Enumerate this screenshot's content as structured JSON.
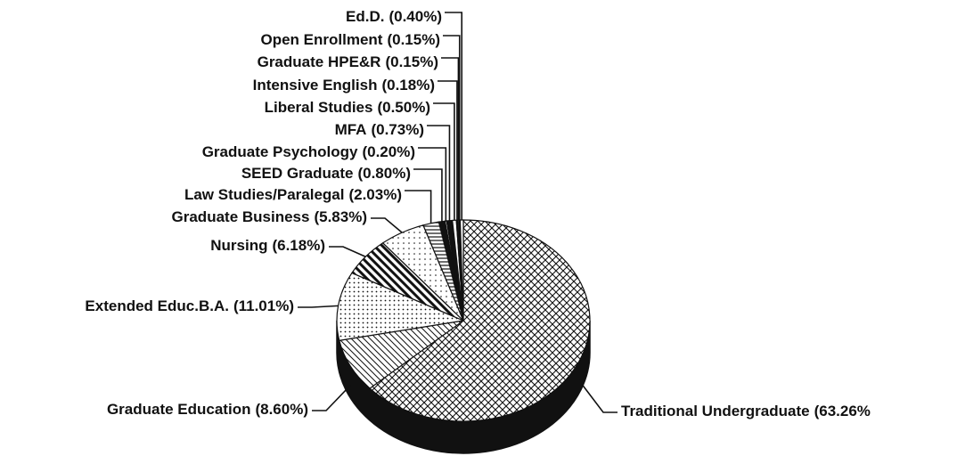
{
  "chart_data": {
    "type": "pie",
    "categories": [
      "Traditional Undergraduate",
      "Graduate Education",
      "Extended Educ.B.A.",
      "Nursing",
      "Graduate Business",
      "Law Studies/Paralegal",
      "SEED Graduate",
      "Graduate Psychology",
      "MFA",
      "Liberal Studies",
      "Intensive English",
      "Graduate HPE&R",
      "Open Enrollment",
      "Ed.D."
    ],
    "values": [
      63.26,
      8.6,
      11.01,
      6.18,
      5.83,
      2.03,
      0.8,
      0.2,
      0.73,
      0.5,
      0.18,
      0.15,
      0.15,
      0.4
    ],
    "value_labels": [
      "(63.26%",
      "(8.60%)",
      "(11.01%)",
      "(6.18%)",
      "(5.83%)",
      "(2.03%)",
      "(0.80%)",
      "(0.20%)",
      "(0.73%)",
      "(0.50%)",
      "(0.18%)",
      "(0.15%)",
      "(0.15%)",
      "(0.40%)"
    ]
  }
}
